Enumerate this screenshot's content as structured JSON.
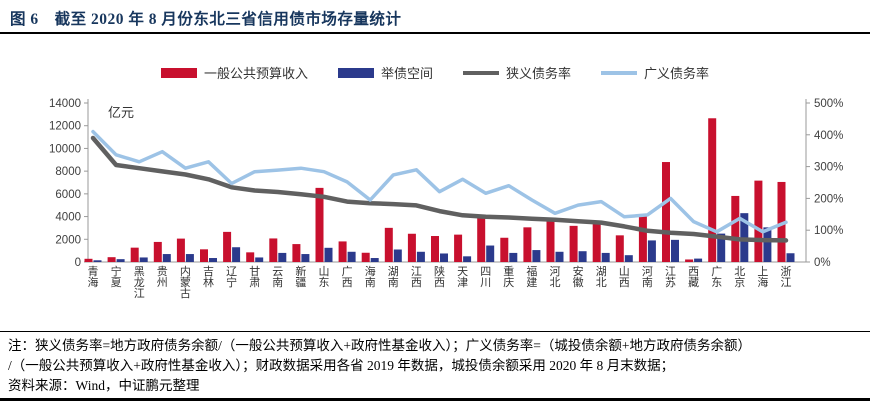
{
  "title": "图 6　截至 2020 年 8 月份东北三省信用债市场存量统计",
  "notes": {
    "line1": "注：狭义债务率=地方政府债务余额/（一般公共预算收入+政府性基金收入）；广义债务率=（城投债余额+地方政府债务余额）",
    "line2": "/（一般公共预算收入+政府性基金收入）；财政数据采用各省 2019 年数据，城投债余额采用 2020 年 8 月末数据；",
    "line3": "资料来源：Wind，中证鹏元整理"
  },
  "colors": {
    "title_navy": "#17365D",
    "revenue_red": "#C8102E",
    "debtspace_blue": "#2B3A8C",
    "narrow_gray": "#606060",
    "broad_lightblue": "#9DC3E6",
    "axis_gray": "#9a9a9a",
    "tick_text": "#404040"
  },
  "chart_data": {
    "type": "bar",
    "unit_label": "亿元",
    "left_axis": {
      "min": 0,
      "max": 14000,
      "step": 2000
    },
    "right_axis": {
      "min": 0,
      "max": 500,
      "step": 100,
      "suffix": "%"
    },
    "legend_position": "top",
    "grid": false,
    "categories": [
      "青海",
      "宁夏",
      "黑龙江",
      "贵州",
      "内蒙古",
      "吉林",
      "辽宁",
      "甘肃",
      "云南",
      "新疆",
      "山东",
      "广西",
      "海南",
      "湖南",
      "江西",
      "陕西",
      "天津",
      "四川",
      "重庆",
      "福建",
      "河北",
      "安徽",
      "湖北",
      "山西",
      "河南",
      "江苏",
      "西藏",
      "广东",
      "北京",
      "上海",
      "浙江"
    ],
    "series": [
      {
        "name": "一般公共预算收入",
        "kind": "bar",
        "axis": "left",
        "color": "#C8102E",
        "values": [
          282,
          424,
          1263,
          1767,
          2060,
          1117,
          2652,
          850,
          2074,
          1577,
          6527,
          1812,
          814,
          3007,
          2487,
          2288,
          2410,
          4070,
          2135,
          3052,
          3742,
          3183,
          3388,
          2347,
          4042,
          8802,
          222,
          12655,
          5817,
          7165,
          7048
        ]
      },
      {
        "name": "举债空间",
        "kind": "bar",
        "axis": "left",
        "color": "#2B3A8C",
        "values": [
          150,
          250,
          400,
          700,
          700,
          350,
          1300,
          400,
          800,
          700,
          1250,
          900,
          350,
          1100,
          900,
          750,
          500,
          1450,
          800,
          1050,
          900,
          950,
          800,
          600,
          1900,
          1950,
          300,
          2500,
          4300,
          3050,
          770
        ]
      },
      {
        "name": "狭义债务率",
        "kind": "line",
        "axis": "right",
        "color": "#606060",
        "values": [
          390,
          305,
          295,
          285,
          275,
          260,
          235,
          225,
          220,
          213,
          205,
          190,
          185,
          182,
          178,
          160,
          147,
          142,
          140,
          136,
          133,
          128,
          124,
          112,
          98,
          92,
          88,
          80,
          71,
          69,
          68
        ]
      },
      {
        "name": "广义债务率",
        "kind": "line",
        "axis": "right",
        "color": "#9DC3E6",
        "values": [
          410,
          337,
          315,
          347,
          295,
          315,
          247,
          284,
          289,
          295,
          284,
          252,
          195,
          274,
          290,
          221,
          260,
          216,
          240,
          195,
          153,
          179,
          190,
          142,
          148,
          200,
          127,
          95,
          137,
          95,
          125
        ]
      }
    ]
  }
}
